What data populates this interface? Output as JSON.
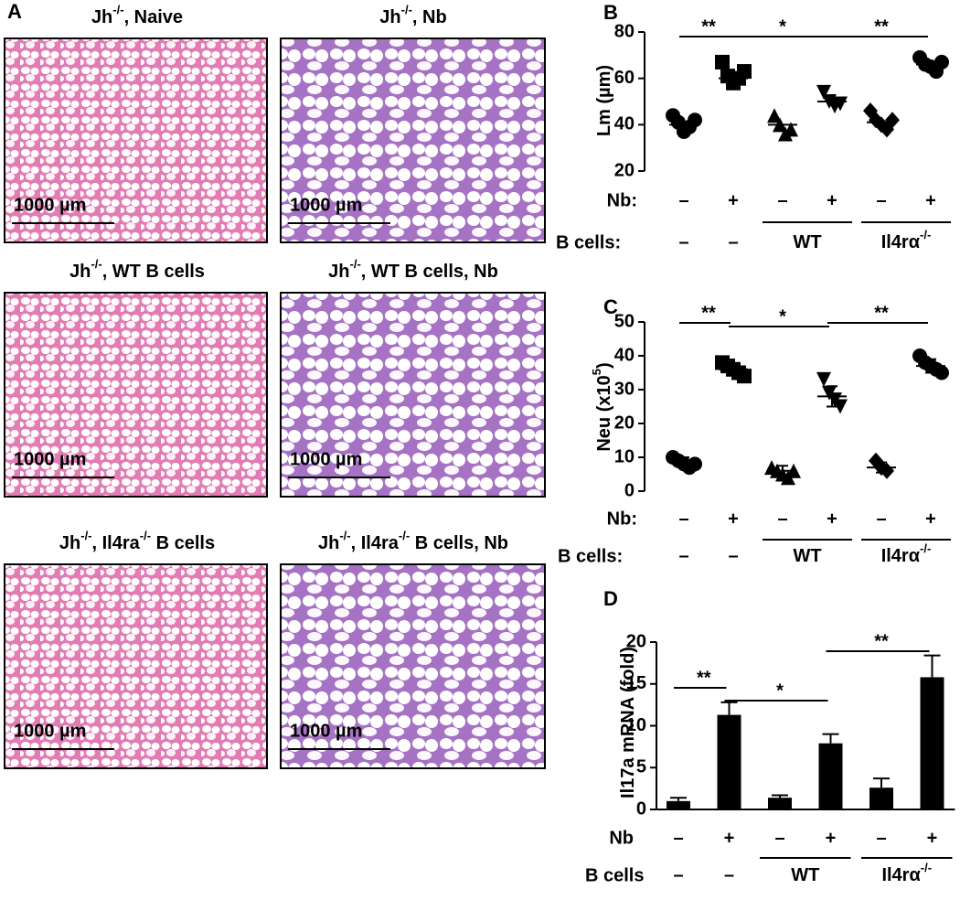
{
  "histology": {
    "panel": "A",
    "images": [
      {
        "title": [
          "Jh",
          "-/-",
          ", Naive"
        ],
        "scale": "1000 µm"
      },
      {
        "title": [
          "Jh",
          "-/-",
          ", Nb"
        ],
        "scale": "1000 µm"
      },
      {
        "title": [
          "Jh",
          "-/-",
          ", WT B cells"
        ],
        "scale": "1000 µm"
      },
      {
        "title": [
          "Jh",
          "-/-",
          ", WT B cells, Nb"
        ],
        "scale": "1000 µm"
      },
      {
        "title": [
          "Jh",
          "-/-",
          ", Il4ra",
          "-/-",
          " B cells"
        ],
        "scale": "1000 µm"
      },
      {
        "title": [
          "Jh",
          "-/-",
          ", Il4ra",
          "-/-",
          " B cells, Nb"
        ],
        "scale": "1000 µm"
      }
    ]
  },
  "chart_data": [
    {
      "type": "strip",
      "panel": "B",
      "ylabel": [
        "Lm (µm)"
      ],
      "ylim": [
        20,
        80
      ],
      "yticks": [
        20,
        40,
        60,
        80
      ],
      "row_label": "Nb:",
      "categories": [
        "–",
        "+",
        "–",
        "+",
        "–",
        "+"
      ],
      "group_row_label": "B cells:",
      "groups": [
        [
          "–"
        ],
        [
          "–"
        ],
        [
          "WT"
        ],
        [
          "Il4rα",
          "-/-"
        ]
      ],
      "markers": [
        "circle",
        "square",
        "triangle",
        "triangle-down",
        "diamond",
        "circle"
      ],
      "color": "#000000",
      "values": [
        [
          44,
          41,
          37,
          39,
          42
        ],
        [
          67,
          61,
          58,
          60,
          63
        ],
        [
          44,
          40,
          36,
          38
        ],
        [
          54,
          50,
          48,
          49
        ],
        [
          46,
          42,
          40,
          38,
          42
        ],
        [
          69,
          66,
          65,
          63,
          67
        ]
      ],
      "centers": [
        40,
        60,
        40,
        50,
        41,
        66
      ],
      "significance": [
        "**",
        "*",
        "**"
      ]
    },
    {
      "type": "strip",
      "panel": "C",
      "ylabel": [
        "Neu (x10",
        "5",
        ")"
      ],
      "ylim": [
        0,
        50
      ],
      "yticks": [
        0,
        10,
        20,
        30,
        40,
        50
      ],
      "row_label": "Nb:",
      "categories": [
        "–",
        "+",
        "–",
        "+",
        "–",
        "+"
      ],
      "group_row_label": "B cells:",
      "groups": [
        [
          "–"
        ],
        [
          "–"
        ],
        [
          "WT"
        ],
        [
          "Il4rα",
          "-/-"
        ]
      ],
      "markers": [
        "circle",
        "square",
        "triangle",
        "triangle-down",
        "diamond",
        "circle"
      ],
      "color": "#000000",
      "values": [
        [
          10,
          9,
          8,
          7,
          8
        ],
        [
          38,
          37,
          36,
          35,
          34
        ],
        [
          7,
          6,
          5,
          4,
          6
        ],
        [
          33,
          29,
          27,
          25
        ],
        [
          9,
          7,
          6
        ],
        [
          40,
          38,
          37,
          36,
          35
        ]
      ],
      "centers": [
        8.5,
        36,
        6,
        28,
        7,
        37
      ],
      "errors": [
        1.5,
        1.8,
        1.5,
        3,
        1.5,
        2
      ],
      "significance": [
        "**",
        "*",
        "**"
      ]
    },
    {
      "type": "bar",
      "panel": "D",
      "ylabel": [
        "Il17a mRNA (fold)"
      ],
      "ylim": [
        0,
        20
      ],
      "yticks": [
        0,
        5,
        10,
        15,
        20
      ],
      "row_label": "Nb",
      "categories": [
        "–",
        "+",
        "–",
        "+",
        "–",
        "+"
      ],
      "group_row_label": "B cells",
      "groups": [
        [
          "–"
        ],
        [
          "–"
        ],
        [
          "WT"
        ],
        [
          "Il4rα",
          "-/-"
        ]
      ],
      "color": "#000000",
      "values": [
        1,
        11.3,
        1.4,
        7.9,
        2.6,
        15.8
      ],
      "errors": [
        0.4,
        1.5,
        0.3,
        1.1,
        1.1,
        2.6
      ],
      "significance": [
        "**",
        "*",
        "**"
      ]
    }
  ]
}
